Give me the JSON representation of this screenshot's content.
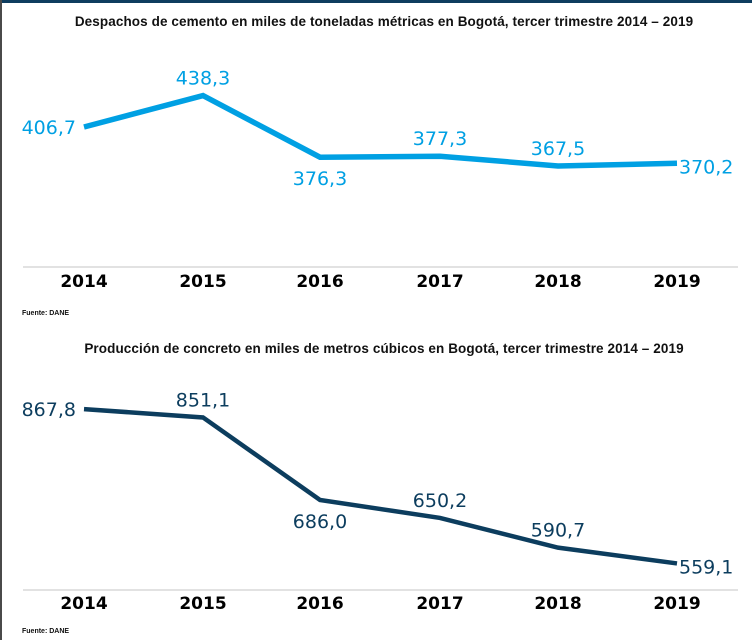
{
  "colors": {
    "header_bar": "#0e3d5f",
    "series1": "#00a0e3",
    "series2": "#0c3d5e",
    "axis": "#d9d9d9"
  },
  "chart_data": [
    {
      "type": "line",
      "title": "Despachos de cemento en miles de toneladas métricas en Bogotá, tercer trimestre 2014 – 2019",
      "xlabel": "",
      "ylabel": "",
      "categories": [
        "2014",
        "2015",
        "2016",
        "2017",
        "2018",
        "2019"
      ],
      "series": [
        {
          "name": "Despachos de cemento",
          "values": [
            406.7,
            438.3,
            376.3,
            377.3,
            367.5,
            370.2
          ],
          "labels": [
            "406,7",
            "438,3",
            "376,3",
            "377,3",
            "367,5",
            "370,2"
          ],
          "label_positions": [
            "left",
            "above",
            "below",
            "above",
            "above",
            "right"
          ]
        }
      ],
      "ylim": [
        290,
        460
      ],
      "grid": false,
      "legend": "none",
      "source": "Fuente: DANE"
    },
    {
      "type": "line",
      "title": "Producción de concreto en miles de metros cúbicos en Bogotá, tercer trimestre 2014 – 2019",
      "xlabel": "",
      "ylabel": "",
      "categories": [
        "2014",
        "2015",
        "2016",
        "2017",
        "2018",
        "2019"
      ],
      "series": [
        {
          "name": "Producción de concreto",
          "values": [
            867.8,
            851.1,
            686.0,
            650.2,
            590.7,
            559.1
          ],
          "labels": [
            "867,8",
            "851,1",
            "686,0",
            "650,2",
            "590,7",
            "559,1"
          ],
          "label_positions": [
            "left",
            "above",
            "below",
            "above",
            "above",
            "right"
          ]
        }
      ],
      "ylim": [
        480,
        900
      ],
      "grid": false,
      "legend": "none",
      "source": "Fuente: DANE"
    }
  ]
}
